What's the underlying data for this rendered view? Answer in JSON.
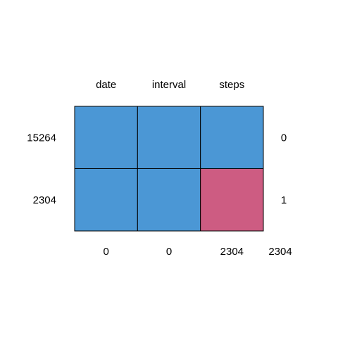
{
  "chart_data": {
    "type": "heatmap",
    "title": "",
    "columns": [
      "date",
      "interval",
      "steps"
    ],
    "rows": [
      {
        "count": "15264",
        "pattern": [
          1,
          1,
          1
        ],
        "missing": "0"
      },
      {
        "count": "2304",
        "pattern": [
          1,
          1,
          0
        ],
        "missing": "1"
      }
    ],
    "column_missing_totals": [
      "0",
      "0",
      "2304"
    ],
    "total_missing": "2304",
    "colors": {
      "observed": "#4B97D5",
      "missing": "#CD5C82",
      "border": "#000000"
    }
  }
}
